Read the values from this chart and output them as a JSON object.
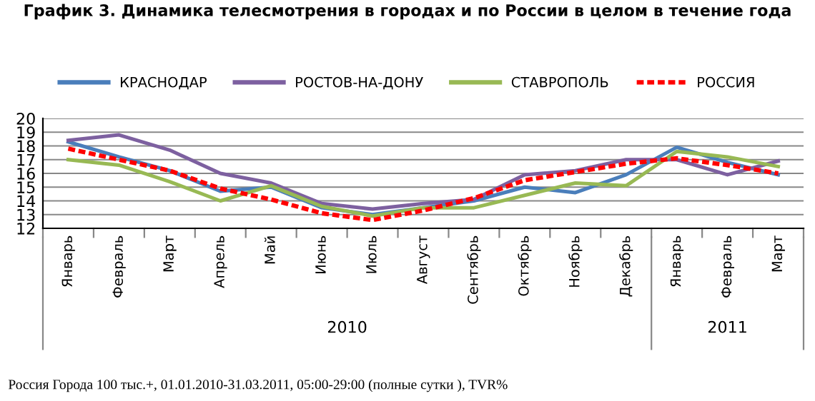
{
  "chart_data": {
    "type": "line",
    "title": "График 3. Динамика телесмотрения в городах и по России в целом в течение года",
    "categories": [
      "Январь",
      "Февраль",
      "Март",
      "Апрель",
      "Май",
      "Июнь",
      "Июль",
      "Август",
      "Сентябрь",
      "Октябрь",
      "Ноябрь",
      "Декабрь",
      "Январь",
      "Февраль",
      "Март"
    ],
    "series": [
      {
        "name": "КРАСНОДАР",
        "color": "#4a7ebb",
        "values": [
          18.3,
          17.2,
          16.2,
          14.7,
          15.0,
          13.5,
          13.0,
          13.5,
          14.0,
          15.0,
          14.6,
          15.9,
          17.9,
          16.8,
          15.9
        ]
      },
      {
        "name": "РОСТОВ-НА-ДОНУ",
        "color": "#7d60a0",
        "values": [
          18.4,
          18.8,
          17.7,
          16.0,
          15.3,
          13.8,
          13.4,
          13.8,
          14.1,
          15.9,
          16.2,
          17.0,
          17.0,
          15.9,
          16.9
        ]
      },
      {
        "name": "СТАВРОПОЛЬ",
        "color": "#98b954",
        "values": [
          17.0,
          16.6,
          15.4,
          14.0,
          15.1,
          13.6,
          12.9,
          13.5,
          13.5,
          14.4,
          15.3,
          15.1,
          17.6,
          17.2,
          16.5
        ]
      },
      {
        "name": "РОССИЯ",
        "color": "#ff0000",
        "line_style": "dashed",
        "values": [
          17.8,
          17.0,
          16.2,
          14.9,
          14.1,
          13.1,
          12.6,
          13.3,
          14.2,
          15.5,
          16.1,
          16.7,
          17.1,
          16.6,
          16.0
        ]
      }
    ],
    "ylim": [
      12,
      20
    ],
    "yticks": [
      12,
      13,
      14,
      15,
      16,
      17,
      18,
      19,
      20
    ],
    "grid": "y",
    "legend": "top",
    "line_style": "solid",
    "annotations": [
      "2010",
      "2011",
      "Россия Города 100 тыс.+, 01.01.2010-31.03.2011, 05:00-29:00 (полные сутки ), TVR%"
    ]
  }
}
